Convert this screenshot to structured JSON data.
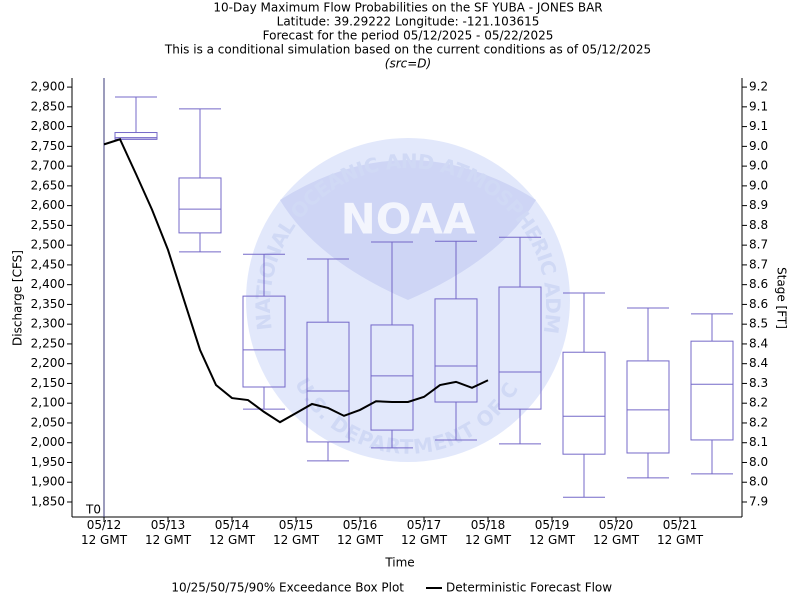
{
  "chart_data": {
    "type": "boxplot",
    "title": [
      "10-Day Maximum Flow Probabilities on the SF YUBA - JONES BAR",
      "Latitude: 39.29222 Longitude: -121.103615",
      "Forecast for the period 05/12/2025 - 05/22/2025",
      "This is a conditional simulation based on the current conditions as of 05/12/2025"
    ],
    "subtitle": "(src=D)",
    "x_label": "Time",
    "y_label": "Discharge [CFS]",
    "y2_label": "Stage [FT]",
    "t0_label": "T0",
    "watermark": {
      "logo": "NOAA",
      "ring_top": "NATIONAL OCEANIC AND ATMOSPHERIC ADMINISTRATION",
      "ring_bottom": "U.S. DEPARTMENT OF COMMERCE"
    },
    "categories": [
      "05/12\n12 GMT",
      "05/13\n12 GMT",
      "05/14\n12 GMT",
      "05/15\n12 GMT",
      "05/16\n12 GMT",
      "05/17\n12 GMT",
      "05/18\n12 GMT",
      "05/19\n12 GMT",
      "05/20\n12 GMT",
      "05/21\n12 GMT"
    ],
    "ylim": [
      1812,
      2923
    ],
    "yticks": [
      {
        "value": 2900,
        "label": "2,900"
      },
      {
        "value": 2850,
        "label": "2,850"
      },
      {
        "value": 2800,
        "label": "2,800"
      },
      {
        "value": 2750,
        "label": "2,750"
      },
      {
        "value": 2700,
        "label": "2,700"
      },
      {
        "value": 2650,
        "label": "2,650"
      },
      {
        "value": 2600,
        "label": "2,600"
      },
      {
        "value": 2550,
        "label": "2,550"
      },
      {
        "value": 2500,
        "label": "2,500"
      },
      {
        "value": 2450,
        "label": "2,450"
      },
      {
        "value": 2400,
        "label": "2,400"
      },
      {
        "value": 2350,
        "label": "2,350"
      },
      {
        "value": 2300,
        "label": "2,300"
      },
      {
        "value": 2250,
        "label": "2,250"
      },
      {
        "value": 2200,
        "label": "2,200"
      },
      {
        "value": 2150,
        "label": "2,150"
      },
      {
        "value": 2100,
        "label": "2,100"
      },
      {
        "value": 2050,
        "label": "2,050"
      },
      {
        "value": 2000,
        "label": "2,000"
      },
      {
        "value": 1950,
        "label": "1,950"
      },
      {
        "value": 1900,
        "label": "1,900"
      },
      {
        "value": 1850,
        "label": "1,850"
      }
    ],
    "y2ticks": [
      9.2,
      9.1,
      9.1,
      {
        "value": 9,
        "label": "9.0"
      },
      {
        "value": 9,
        "label": "9.0"
      },
      {
        "value": 9,
        "label": "9.0"
      },
      8.9,
      8.8,
      8.7,
      8.7,
      8.6,
      8.6,
      8.5,
      8.4,
      8.4,
      8.3,
      8.2,
      8.2,
      8.1,
      {
        "value": 8,
        "label": "8.0"
      },
      {
        "value": 8,
        "label": "8.0"
      },
      7.9
    ],
    "box_series": {
      "name": "10/25/50/75/90% Exceedance Box Plot",
      "color": "#7468c8",
      "p90": [
        2875,
        2845,
        2477,
        2465,
        2508,
        2510,
        2520,
        2379,
        2341,
        2326
      ],
      "p75": [
        2785,
        2670,
        2371,
        2305,
        2298,
        2364,
        2394,
        2229,
        2207,
        2257
      ],
      "p50": [
        2772,
        2591,
        2235,
        2131,
        2169,
        2194,
        2179,
        2067,
        2083,
        2148
      ],
      "p25": [
        2768,
        2531,
        2141,
        2002,
        2032,
        2103,
        2085,
        1971,
        1974,
        2007
      ],
      "p10": [
        2768,
        2483,
        2085,
        1954,
        1987,
        2007,
        1997,
        1862,
        1911,
        1921
      ]
    },
    "line_series": {
      "name": "Deterministic Forecast Flow",
      "color": "#000000",
      "values": [
        2755,
        2768,
        2680,
        2590,
        2488,
        2361,
        2235,
        2146,
        2113,
        2108,
        2078,
        2052,
        2075,
        2098,
        2088,
        2068,
        2083,
        2105,
        2103,
        2103,
        2116,
        2146,
        2154,
        2139,
        2158
      ]
    }
  }
}
